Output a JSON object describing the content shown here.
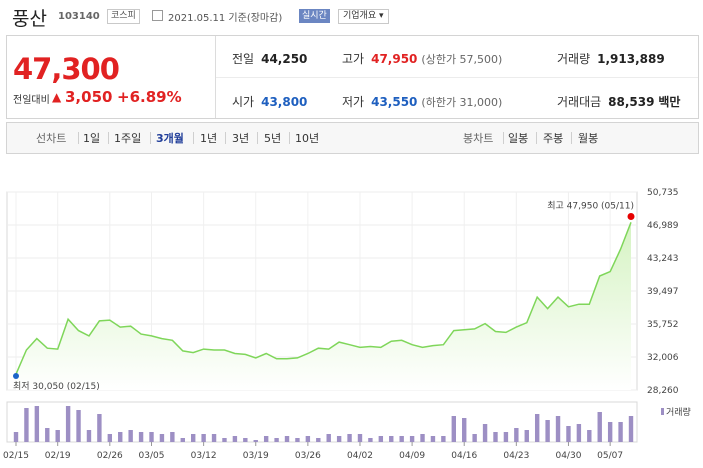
{
  "header": {
    "stock_name": "풍산",
    "stock_code": "103140",
    "market": "코스피",
    "date": "2021.05.11 기준(장마감)",
    "realtime_label": "실시간",
    "company_overview_label": "기업개요"
  },
  "price": {
    "current": "47,300",
    "change_label": "전일대비",
    "change_value": "3,050",
    "change_pct": "+6.89%",
    "up_color": "#e12222",
    "down_color": "#1e5fbf"
  },
  "stats": {
    "prev_close": {
      "label": "전일",
      "value": "44,250"
    },
    "high": {
      "label": "고가",
      "value": "47,950",
      "note": "(상한가 57,500)"
    },
    "volume": {
      "label": "거래량",
      "value": "1,913,889"
    },
    "open": {
      "label": "시가",
      "value": "43,800"
    },
    "low": {
      "label": "저가",
      "value": "43,550",
      "note": "(하한가 31,000)"
    },
    "turnover": {
      "label": "거래대금",
      "value": "88,539",
      "unit": "백만"
    }
  },
  "tabs": {
    "line_chart": "선차트",
    "d1": "1일",
    "w1": "1주일",
    "m3": "3개월",
    "y1": "1년",
    "y3": "3년",
    "y5": "5년",
    "y10": "10년",
    "candle_chart": "봉차트",
    "daily": "일봉",
    "weekly": "주봉",
    "monthly": "월봉",
    "active": "3개월"
  },
  "chart_data": {
    "type": "area",
    "y_ticks": [
      "50,735",
      "46,989",
      "43,243",
      "39,497",
      "35,752",
      "32,006",
      "28,260"
    ],
    "ylim": [
      28260,
      50735
    ],
    "x_ticks": [
      "02/15",
      "02/19",
      "02/26",
      "03/05",
      "03/12",
      "03/19",
      "03/26",
      "04/02",
      "04/09",
      "04/16",
      "04/23",
      "04/30",
      "05/07"
    ],
    "x": [
      "02/15",
      "02/16",
      "02/17",
      "02/18",
      "02/19",
      "02/22",
      "02/23",
      "02/24",
      "02/25",
      "02/26",
      "03/02",
      "03/03",
      "03/04",
      "03/05",
      "03/08",
      "03/09",
      "03/10",
      "03/11",
      "03/12",
      "03/15",
      "03/16",
      "03/17",
      "03/18",
      "03/19",
      "03/22",
      "03/23",
      "03/24",
      "03/25",
      "03/26",
      "03/29",
      "03/30",
      "03/31",
      "04/01",
      "04/02",
      "04/05",
      "04/06",
      "04/07",
      "04/08",
      "04/09",
      "04/12",
      "04/13",
      "04/14",
      "04/15",
      "04/16",
      "04/19",
      "04/20",
      "04/21",
      "04/22",
      "04/23",
      "04/26",
      "04/27",
      "04/28",
      "04/29",
      "04/30",
      "05/03",
      "05/04",
      "05/06",
      "05/07",
      "05/10",
      "05/11"
    ],
    "close": [
      30050,
      32800,
      34100,
      33000,
      32900,
      36300,
      35000,
      34400,
      36100,
      36200,
      35400,
      35500,
      34600,
      34400,
      34100,
      33900,
      32700,
      32500,
      32900,
      32800,
      32800,
      32400,
      32300,
      31900,
      32400,
      31800,
      31800,
      31900,
      32400,
      33000,
      32900,
      33700,
      33400,
      33100,
      33200,
      33100,
      33800,
      33900,
      33400,
      33100,
      33300,
      33400,
      35000,
      35100,
      35200,
      35800,
      34900,
      34800,
      35400,
      35900,
      38800,
      37500,
      38800,
      37700,
      38000,
      38000,
      41200,
      41700,
      44250,
      47300
    ],
    "volume": [
      5,
      17,
      18,
      7,
      6,
      18,
      16,
      6,
      14,
      4,
      5,
      6,
      5,
      5,
      4,
      5,
      2,
      4,
      4,
      4,
      2,
      3,
      2,
      1,
      3,
      2,
      3,
      2,
      3,
      2,
      4,
      3,
      4,
      4,
      2,
      3,
      3,
      3,
      3,
      4,
      3,
      3,
      13,
      12,
      4,
      9,
      5,
      5,
      7,
      6,
      14,
      11,
      13,
      8,
      9,
      6,
      15,
      10,
      10,
      13
    ],
    "annotations": {
      "high": "최고 47,950 (05/11)",
      "low": "최저 30,050 (02/15)"
    },
    "volume_legend": "거래량",
    "line_color": "#7fd65a",
    "fill_color": "#d5f3c2",
    "bar_color": "#9d8fc4",
    "marker_color_high": "#e60000",
    "marker_color_low": "#1c64c8"
  }
}
